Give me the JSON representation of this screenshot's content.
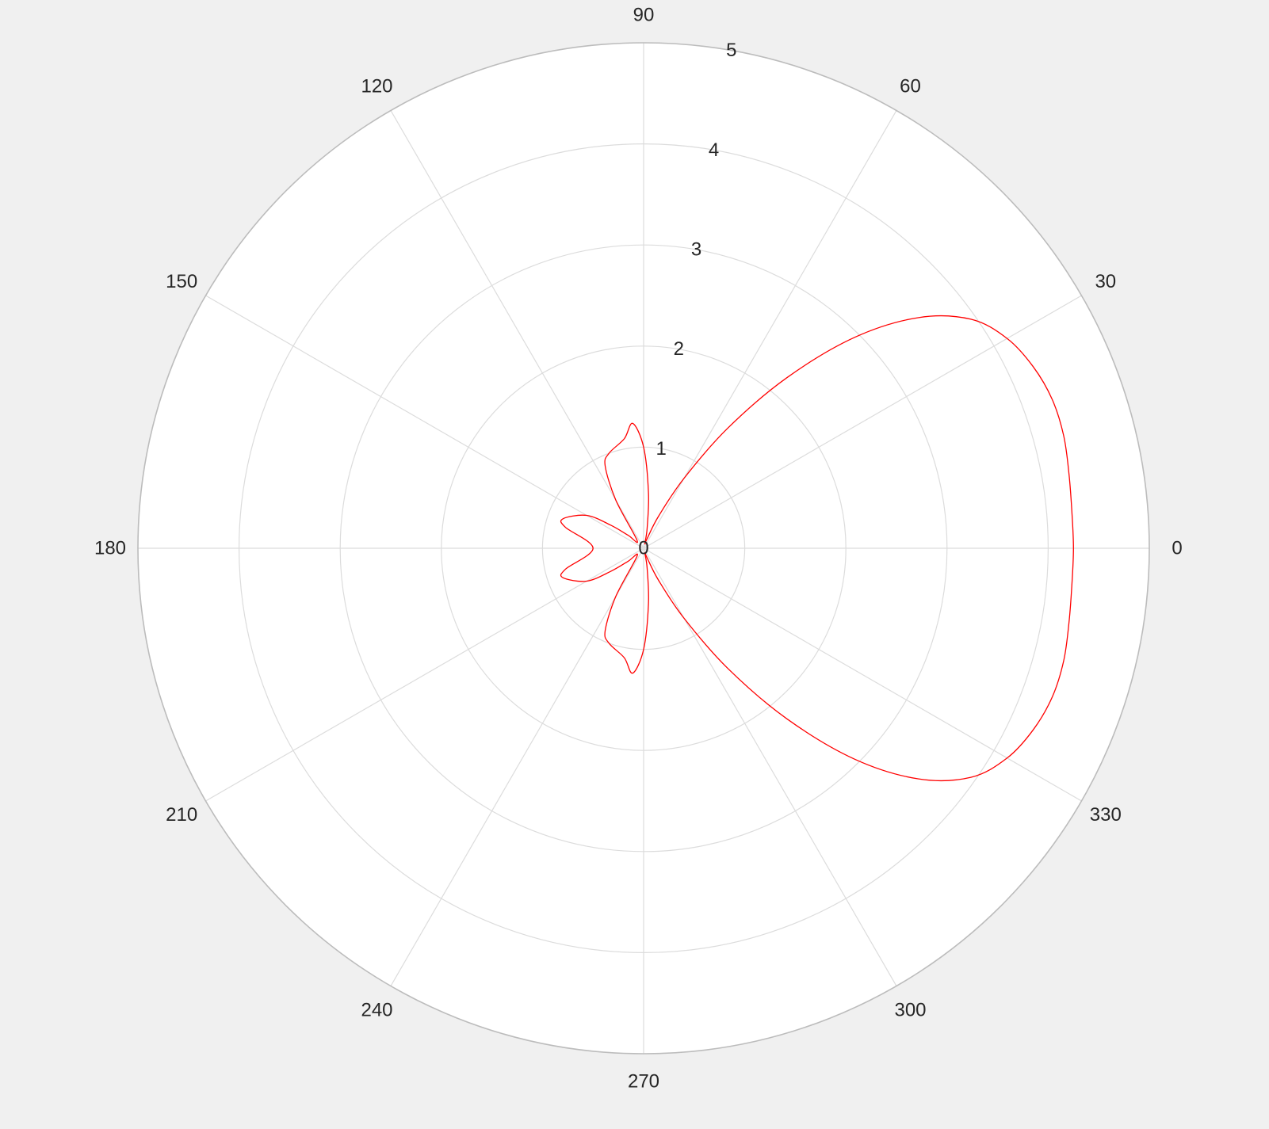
{
  "chart_data": {
    "type": "line",
    "projection": "polar",
    "title": "",
    "xlabel": "",
    "ylabel": "",
    "theta_unit": "degrees",
    "theta_zero_location": "east",
    "theta_direction": "counterclockwise",
    "theta_ticks": [
      "0",
      "30",
      "60",
      "90",
      "120",
      "150",
      "180",
      "210",
      "240",
      "270",
      "300",
      "330"
    ],
    "r_ticks": [
      "0",
      "1",
      "2",
      "3",
      "4",
      "5"
    ],
    "rlim": [
      0,
      5
    ],
    "r_label_angle_deg": 80,
    "grid": true,
    "legend": "none",
    "series": [
      {
        "color": "#ff0000",
        "theta": [
          -180,
          -165,
          -160,
          -150,
          -145,
          -140,
          -130,
          -120,
          -115,
          -110,
          -100,
          -95,
          -90,
          -85,
          -80,
          -75,
          -70,
          -65,
          -60,
          -55,
          -50,
          -45,
          -40,
          -35,
          -30,
          -25,
          -20,
          -15,
          -10,
          -5,
          0,
          5,
          10,
          15,
          20,
          25,
          30,
          35,
          40,
          45,
          50,
          55,
          60,
          65,
          70,
          75,
          80,
          85,
          90,
          95,
          100,
          110,
          115,
          120,
          130,
          140,
          145,
          150,
          160,
          165,
          180
        ],
        "r": [
          0.5,
          0.8,
          0.85,
          0.65,
          0.4,
          0.2,
          0.1,
          0.55,
          0.9,
          1.0,
          1.1,
          1.24,
          1.0,
          0.55,
          0.2,
          0.05,
          0.1,
          0.35,
          0.8,
          1.45,
          2.2,
          2.95,
          3.55,
          3.95,
          4.15,
          4.25,
          4.3,
          4.3,
          4.27,
          4.25,
          4.25,
          4.25,
          4.27,
          4.3,
          4.3,
          4.25,
          4.15,
          3.95,
          3.55,
          2.95,
          2.2,
          1.45,
          0.8,
          0.35,
          0.1,
          0.05,
          0.2,
          0.55,
          1.0,
          1.24,
          1.1,
          1.0,
          0.9,
          0.55,
          0.1,
          0.2,
          0.4,
          0.65,
          0.85,
          0.8,
          0.5
        ]
      }
    ]
  },
  "colors": {
    "background": "#f0f0f0",
    "plot_face": "#ffffff",
    "grid": "#dcdcdc",
    "outer_ring": "#bcbcbc",
    "text": "#262626",
    "line": "#ff0000"
  }
}
